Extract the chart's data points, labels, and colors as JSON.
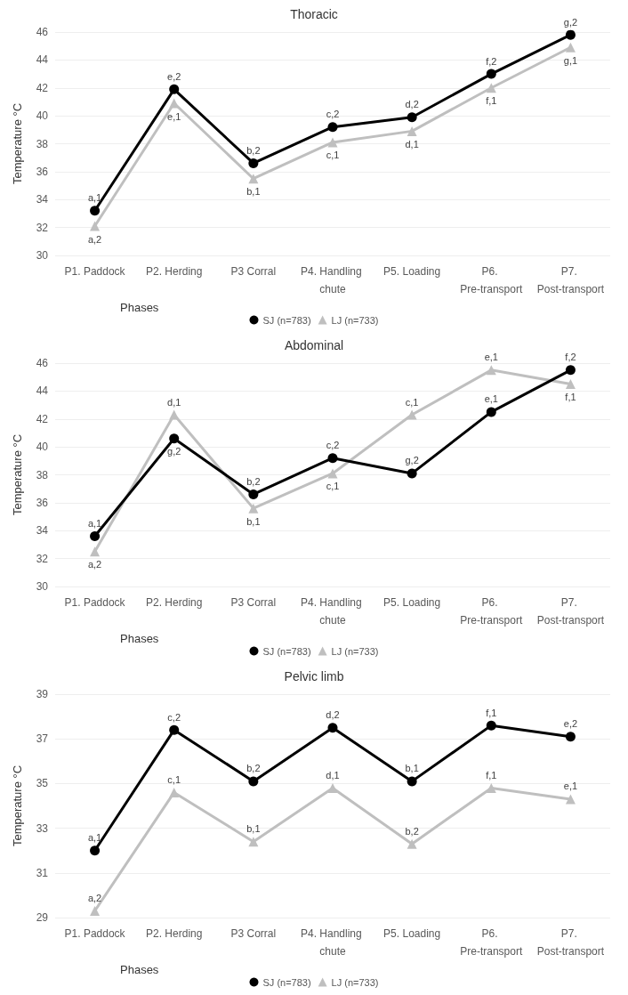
{
  "chart_data": [
    {
      "type": "line",
      "title": "Thoracic",
      "xlabel": "Phases",
      "ylabel": "Temperature °C",
      "categories": [
        "P1. Paddock",
        "P2. Herding",
        "P3 Corral",
        "P4. Handling chute",
        "P5. Loading",
        "P6. Pre-transport",
        "P7. Post-transport"
      ],
      "ylim": [
        30,
        46
      ],
      "yticks": [
        30,
        32,
        34,
        36,
        38,
        40,
        42,
        44,
        46
      ],
      "grid": "y",
      "legend": "bottom",
      "line_style": "solid",
      "series": [
        {
          "name": "SJ (n=783)",
          "color": "#000000",
          "marker": "circle",
          "values": [
            33.2,
            41.9,
            36.6,
            39.2,
            39.9,
            43.0,
            45.8
          ]
        },
        {
          "name": "LJ (n=733)",
          "color": "#bfbfbf",
          "marker": "triangle",
          "values": [
            32.1,
            40.9,
            35.5,
            38.1,
            38.9,
            42.0,
            44.9
          ]
        }
      ],
      "annotations": [
        {
          "text": "a,1",
          "x": "P1. Paddock",
          "y": 33.2
        },
        {
          "text": "e,2",
          "x": "P2. Herding",
          "y": 41.9
        },
        {
          "text": "b,2",
          "x": "P3 Corral",
          "y": 36.6
        },
        {
          "text": "c,2",
          "x": "P4. Handling chute",
          "y": 39.2
        },
        {
          "text": "d,2",
          "x": "P5. Loading",
          "y": 39.9
        },
        {
          "text": "f,2",
          "x": "P6. Pre-transport",
          "y": 43.0
        },
        {
          "text": "g,2",
          "x": "P7. Post-transport",
          "y": 45.8
        },
        {
          "text": "a,2",
          "x": "P1. Paddock",
          "y": 32.1
        },
        {
          "text": "e,1",
          "x": "P2. Herding",
          "y": 40.9
        },
        {
          "text": "b,1",
          "x": "P3 Corral",
          "y": 35.5
        },
        {
          "text": "c,1",
          "x": "P4. Handling chute",
          "y": 38.1
        },
        {
          "text": "d,1",
          "x": "P5. Loading",
          "y": 38.9
        },
        {
          "text": "f,1",
          "x": "P6. Pre-transport",
          "y": 42.0
        },
        {
          "text": "g,1",
          "x": "P7. Post-transport",
          "y": 44.9
        }
      ]
    },
    {
      "type": "line",
      "title": "Abdominal",
      "xlabel": "Phases",
      "ylabel": "Temperature °C",
      "categories": [
        "P1. Paddock",
        "P2. Herding",
        "P3 Corral",
        "P4. Handling chute",
        "P5. Loading",
        "P6. Pre-transport",
        "P7. Post-transport"
      ],
      "ylim": [
        30,
        46
      ],
      "yticks": [
        30,
        32,
        34,
        36,
        38,
        40,
        42,
        44,
        46
      ],
      "grid": "y",
      "legend": "bottom",
      "line_style": "solid",
      "series": [
        {
          "name": "SJ (n=783)",
          "color": "#000000",
          "marker": "circle",
          "values": [
            33.6,
            40.6,
            36.6,
            39.2,
            38.1,
            42.5,
            45.5
          ]
        },
        {
          "name": "LJ (n=733)",
          "color": "#bfbfbf",
          "marker": "triangle",
          "values": [
            32.5,
            42.3,
            35.6,
            38.1,
            42.3,
            45.5,
            44.5
          ]
        }
      ],
      "annotations": [
        {
          "text": "a,1",
          "x": "P1. Paddock",
          "y": 33.6
        },
        {
          "text": "g,2",
          "x": "P2. Herding",
          "y": 40.6
        },
        {
          "text": "b,2",
          "x": "P3 Corral",
          "y": 36.6
        },
        {
          "text": "c,2",
          "x": "P4. Handling chute",
          "y": 39.2
        },
        {
          "text": "g,2",
          "x": "P5. Loading",
          "y": 38.1
        },
        {
          "text": "e,1",
          "x": "P6. Pre-transport",
          "y": 42.5
        },
        {
          "text": "f,2",
          "x": "P7. Post-transport",
          "y": 45.5
        },
        {
          "text": "a,2",
          "x": "P1. Paddock",
          "y": 32.5
        },
        {
          "text": "d,1",
          "x": "P2. Herding",
          "y": 42.3
        },
        {
          "text": "b,1",
          "x": "P3 Corral",
          "y": 35.6
        },
        {
          "text": "c,1",
          "x": "P4. Handling chute",
          "y": 38.1
        },
        {
          "text": "c,1",
          "x": "P5. Loading",
          "y": 42.3
        },
        {
          "text": "e,1",
          "x": "P6. Pre-transport",
          "y": 45.5
        },
        {
          "text": "f,1",
          "x": "P7. Post-transport",
          "y": 44.5
        }
      ]
    },
    {
      "type": "line",
      "title": "Pelvic limb",
      "xlabel": "Phases",
      "ylabel": "Temperature °C",
      "categories": [
        "P1. Paddock",
        "P2. Herding",
        "P3 Corral",
        "P4. Handling chute",
        "P5. Loading",
        "P6. Pre-transport",
        "P7. Post-transport"
      ],
      "ylim": [
        29,
        39
      ],
      "yticks": [
        29,
        31,
        33,
        35,
        37,
        39
      ],
      "grid": "y",
      "legend": "bottom",
      "line_style": "solid",
      "series": [
        {
          "name": "SJ (n=783)",
          "color": "#000000",
          "marker": "circle",
          "values": [
            32.0,
            37.4,
            35.1,
            37.5,
            35.1,
            37.6,
            37.1
          ]
        },
        {
          "name": "LJ (n=733)",
          "color": "#bfbfbf",
          "marker": "triangle",
          "values": [
            29.3,
            34.6,
            32.4,
            34.8,
            32.3,
            34.8,
            34.3
          ]
        }
      ],
      "annotations": [
        {
          "text": "a,1",
          "x": "P1. Paddock",
          "y": 32.0
        },
        {
          "text": "c,2",
          "x": "P2. Herding",
          "y": 37.4
        },
        {
          "text": "b,2",
          "x": "P3 Corral",
          "y": 35.1
        },
        {
          "text": "d,2",
          "x": "P4. Handling chute",
          "y": 37.5
        },
        {
          "text": "b,1",
          "x": "P5. Loading",
          "y": 35.1
        },
        {
          "text": "f,1",
          "x": "P6. Pre-transport",
          "y": 37.6
        },
        {
          "text": "e,2",
          "x": "P7. Post-transport",
          "y": 37.1
        },
        {
          "text": "a,2",
          "x": "P1. Paddock",
          "y": 29.3
        },
        {
          "text": "c,1",
          "x": "P2. Herding",
          "y": 34.6
        },
        {
          "text": "b,1",
          "x": "P3 Corral",
          "y": 32.4
        },
        {
          "text": "d,1",
          "x": "P4. Handling chute",
          "y": 34.8
        },
        {
          "text": "b,2",
          "x": "P5. Loading",
          "y": 32.3
        },
        {
          "text": "f,1",
          "x": "P6. Pre-transport",
          "y": 34.8
        },
        {
          "text": "e,1",
          "x": "P7. Post-transport",
          "y": 34.3
        }
      ]
    }
  ]
}
